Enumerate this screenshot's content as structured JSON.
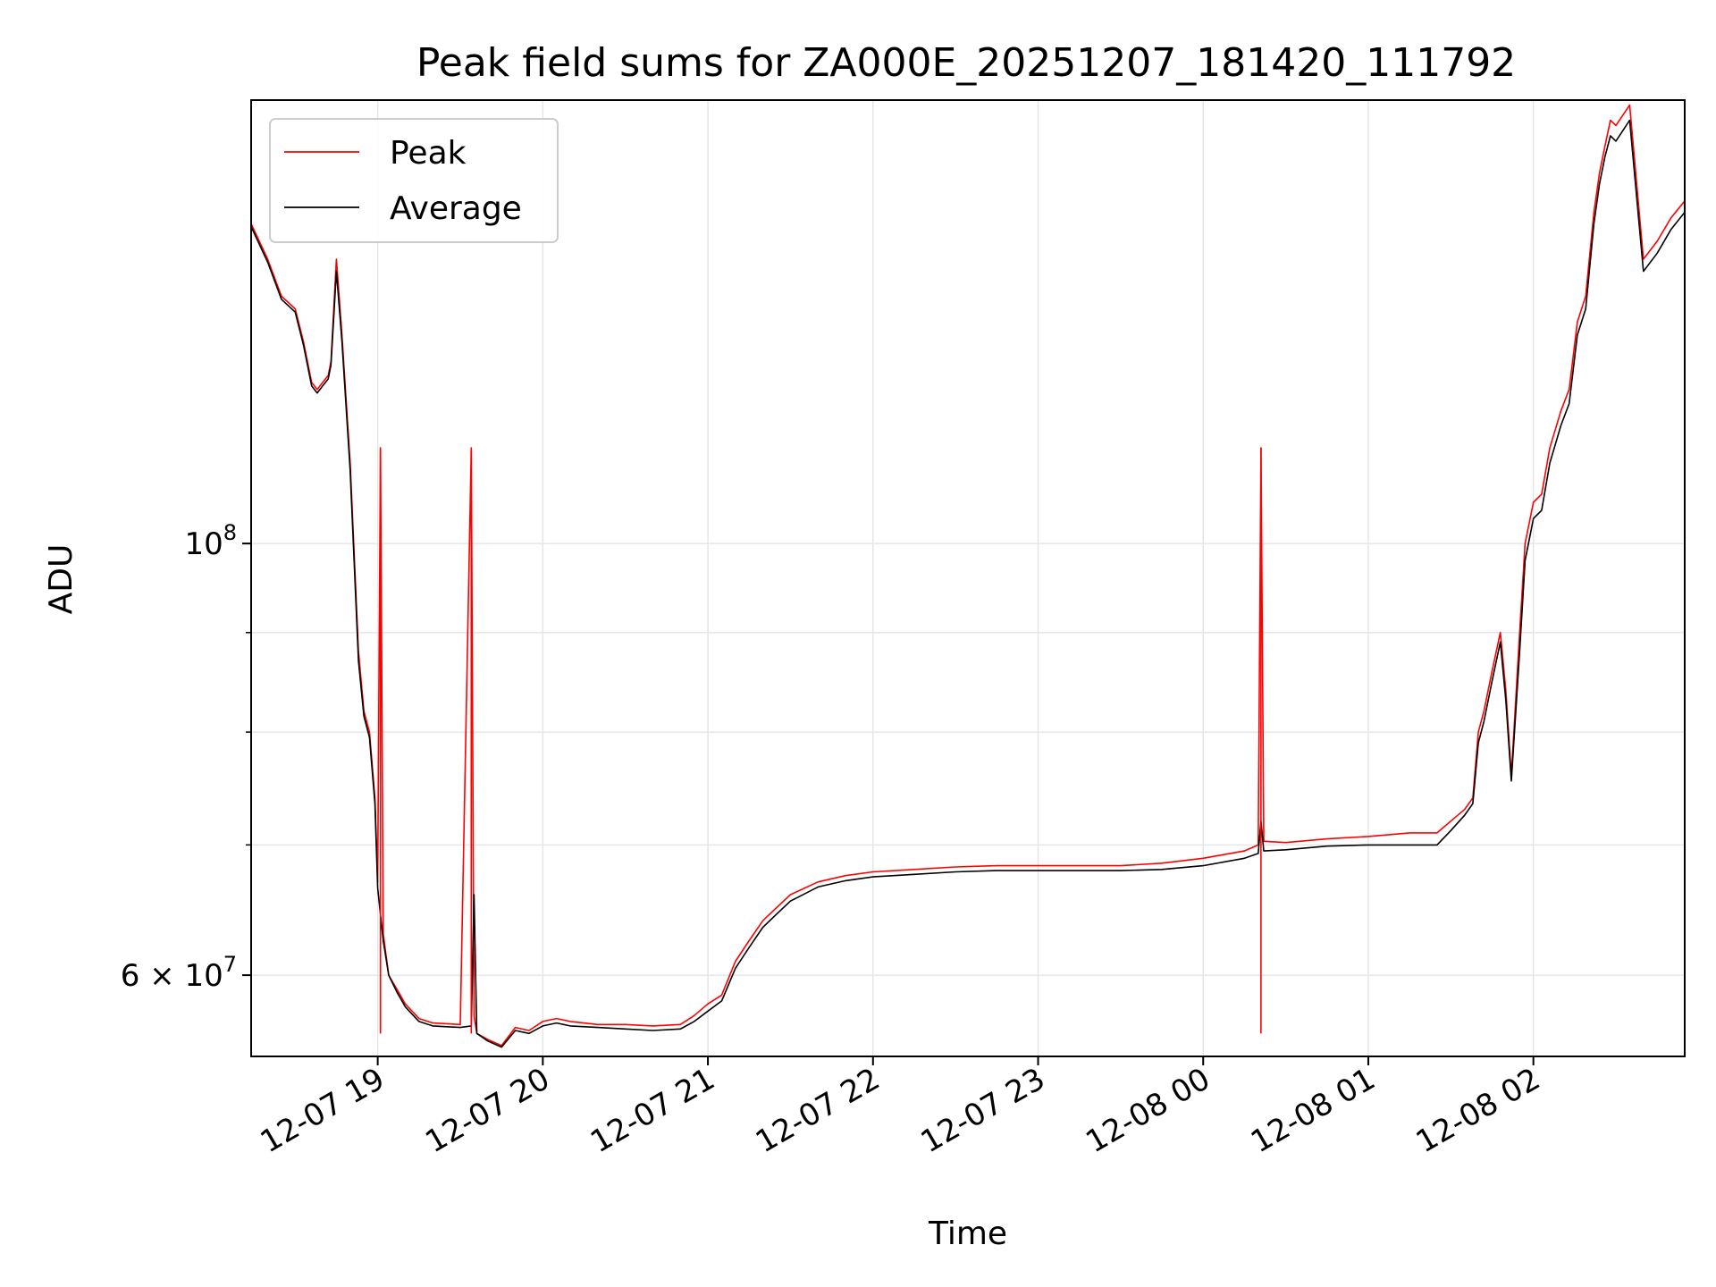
{
  "chart_data": {
    "type": "line",
    "title": "Peak field sums for ZA000E_20251207_181420_111792",
    "xlabel": "Time",
    "ylabel": "ADU",
    "yscale": "log",
    "ylim": [
      54500000,
      169000000
    ],
    "xlim": [
      "2025-12-07 18:14",
      "2025-12-08 02:55"
    ],
    "x_ticks": [
      "12-07 19",
      "12-07 20",
      "12-07 21",
      "12-07 22",
      "12-07 23",
      "12-08 00",
      "12-08 01",
      "12-08 02"
    ],
    "x_tick_times": [
      "2025-12-07 19:00",
      "2025-12-07 20:00",
      "2025-12-07 21:00",
      "2025-12-07 22:00",
      "2025-12-07 23:00",
      "2025-12-08 00:00",
      "2025-12-08 01:00",
      "2025-12-08 02:00"
    ],
    "y_major_ticks": [
      {
        "value": 60000000,
        "label_base": "6 × 10",
        "label_exp": "7"
      },
      {
        "value": 100000000,
        "label_base": "10",
        "label_exp": "8"
      }
    ],
    "y_minor_ticks": [
      70000000,
      80000000,
      90000000
    ],
    "grid": true,
    "legend_position": "upper-left",
    "colors": {
      "peak": "#ff0000",
      "average": "#000000",
      "grid": "#e6e6e6"
    },
    "series": [
      {
        "name": "Peak",
        "color": "#ff0000",
        "x": [
          "2025-12-07 18:14",
          "2025-12-07 18:20",
          "2025-12-07 18:25",
          "2025-12-07 18:30",
          "2025-12-07 18:33",
          "2025-12-07 18:36",
          "2025-12-07 18:38",
          "2025-12-07 18:40",
          "2025-12-07 18:42",
          "2025-12-07 18:43",
          "2025-12-07 18:45",
          "2025-12-07 18:47",
          "2025-12-07 18:50",
          "2025-12-07 18:53",
          "2025-12-07 18:55",
          "2025-12-07 18:57",
          "2025-12-07 18:59",
          "2025-12-07 19:00",
          "2025-12-07 19:01",
          "2025-12-07 19:02",
          "2025-12-07 19:04",
          "2025-12-07 19:07",
          "2025-12-07 19:10",
          "2025-12-07 19:15",
          "2025-12-07 19:20",
          "2025-12-07 19:30",
          "2025-12-07 19:34",
          "2025-12-07 19:35",
          "2025-12-07 19:36",
          "2025-12-07 19:40",
          "2025-12-07 19:45",
          "2025-12-07 19:50",
          "2025-12-07 19:55",
          "2025-12-07 20:00",
          "2025-12-07 20:05",
          "2025-12-07 20:10",
          "2025-12-07 20:20",
          "2025-12-07 20:30",
          "2025-12-07 20:40",
          "2025-12-07 20:50",
          "2025-12-07 20:55",
          "2025-12-07 21:00",
          "2025-12-07 21:05",
          "2025-12-07 21:10",
          "2025-12-07 21:15",
          "2025-12-07 21:20",
          "2025-12-07 21:25",
          "2025-12-07 21:30",
          "2025-12-07 21:40",
          "2025-12-07 21:50",
          "2025-12-07 22:00",
          "2025-12-07 22:15",
          "2025-12-07 22:30",
          "2025-12-07 22:45",
          "2025-12-07 23:00",
          "2025-12-07 23:15",
          "2025-12-07 23:30",
          "2025-12-07 23:45",
          "2025-12-08 00:00",
          "2025-12-08 00:15",
          "2025-12-08 00:20",
          "2025-12-08 00:21",
          "2025-12-08 00:22",
          "2025-12-08 00:30",
          "2025-12-08 00:45",
          "2025-12-08 01:00",
          "2025-12-08 01:15",
          "2025-12-08 01:25",
          "2025-12-08 01:30",
          "2025-12-08 01:35",
          "2025-12-08 01:38",
          "2025-12-08 01:40",
          "2025-12-08 01:42",
          "2025-12-08 01:45",
          "2025-12-08 01:48",
          "2025-12-08 01:50",
          "2025-12-08 01:52",
          "2025-12-08 01:55",
          "2025-12-08 01:57",
          "2025-12-08 02:00",
          "2025-12-08 02:03",
          "2025-12-08 02:06",
          "2025-12-08 02:10",
          "2025-12-08 02:13",
          "2025-12-08 02:16",
          "2025-12-08 02:19",
          "2025-12-08 02:22",
          "2025-12-08 02:24",
          "2025-12-08 02:26",
          "2025-12-08 02:28",
          "2025-12-08 02:30",
          "2025-12-08 02:35",
          "2025-12-08 02:40",
          "2025-12-08 02:45",
          "2025-12-08 02:50",
          "2025-12-08 02:55"
        ],
        "values": [
          146000000,
          140000000,
          134000000,
          132000000,
          127000000,
          121000000,
          120000000,
          121000000,
          122000000,
          124000000,
          140000000,
          128000000,
          110000000,
          88000000,
          82000000,
          80000000,
          74000000,
          67000000,
          112000000,
          63000000,
          60000000,
          59000000,
          58000000,
          57000000,
          56700000,
          56600000,
          112000000,
          57200000,
          56000000,
          55600000,
          55200000,
          56400000,
          56200000,
          56800000,
          57000000,
          56800000,
          56600000,
          56600000,
          56500000,
          56600000,
          57200000,
          58000000,
          58600000,
          61000000,
          62500000,
          64000000,
          65000000,
          66000000,
          67000000,
          67500000,
          67800000,
          68000000,
          68200000,
          68300000,
          68300000,
          68300000,
          68300000,
          68500000,
          68900000,
          69500000,
          70000000,
          112000000,
          70300000,
          70200000,
          70500000,
          70700000,
          71000000,
          71000000,
          72000000,
          73000000,
          74000000,
          80000000,
          82000000,
          86000000,
          90000000,
          84000000,
          76000000,
          90000000,
          100000000,
          105000000,
          106000000,
          112000000,
          117000000,
          120000000,
          130000000,
          134000000,
          148000000,
          155000000,
          160000000,
          165000000,
          164000000,
          168000000,
          140000000,
          143000000,
          147000000,
          150000000
        ]
      },
      {
        "name": "Average",
        "color": "#000000",
        "x": [
          "2025-12-07 18:14",
          "2025-12-07 18:20",
          "2025-12-07 18:25",
          "2025-12-07 18:30",
          "2025-12-07 18:33",
          "2025-12-07 18:36",
          "2025-12-07 18:38",
          "2025-12-07 18:40",
          "2025-12-07 18:42",
          "2025-12-07 18:43",
          "2025-12-07 18:45",
          "2025-12-07 18:47",
          "2025-12-07 18:50",
          "2025-12-07 18:53",
          "2025-12-07 18:55",
          "2025-12-07 18:57",
          "2025-12-07 18:59",
          "2025-12-07 19:00",
          "2025-12-07 19:02",
          "2025-12-07 19:04",
          "2025-12-07 19:07",
          "2025-12-07 19:10",
          "2025-12-07 19:15",
          "2025-12-07 19:20",
          "2025-12-07 19:30",
          "2025-12-07 19:34",
          "2025-12-07 19:35",
          "2025-12-07 19:36",
          "2025-12-07 19:40",
          "2025-12-07 19:45",
          "2025-12-07 19:50",
          "2025-12-07 19:55",
          "2025-12-07 20:00",
          "2025-12-07 20:05",
          "2025-12-07 20:10",
          "2025-12-07 20:20",
          "2025-12-07 20:30",
          "2025-12-07 20:40",
          "2025-12-07 20:50",
          "2025-12-07 20:55",
          "2025-12-07 21:00",
          "2025-12-07 21:05",
          "2025-12-07 21:10",
          "2025-12-07 21:15",
          "2025-12-07 21:20",
          "2025-12-07 21:25",
          "2025-12-07 21:30",
          "2025-12-07 21:40",
          "2025-12-07 21:50",
          "2025-12-07 22:00",
          "2025-12-07 22:15",
          "2025-12-07 22:30",
          "2025-12-07 22:45",
          "2025-12-07 23:00",
          "2025-12-07 23:15",
          "2025-12-07 23:30",
          "2025-12-07 23:45",
          "2025-12-08 00:00",
          "2025-12-08 00:15",
          "2025-12-08 00:20",
          "2025-12-08 00:21",
          "2025-12-08 00:22",
          "2025-12-08 00:30",
          "2025-12-08 00:45",
          "2025-12-08 01:00",
          "2025-12-08 01:15",
          "2025-12-08 01:25",
          "2025-12-08 01:30",
          "2025-12-08 01:35",
          "2025-12-08 01:38",
          "2025-12-08 01:40",
          "2025-12-08 01:42",
          "2025-12-08 01:45",
          "2025-12-08 01:48",
          "2025-12-08 01:50",
          "2025-12-08 01:52",
          "2025-12-08 01:55",
          "2025-12-08 01:57",
          "2025-12-08 02:00",
          "2025-12-08 02:03",
          "2025-12-08 02:06",
          "2025-12-08 02:10",
          "2025-12-08 02:13",
          "2025-12-08 02:16",
          "2025-12-08 02:19",
          "2025-12-08 02:22",
          "2025-12-08 02:24",
          "2025-12-08 02:26",
          "2025-12-08 02:28",
          "2025-12-08 02:30",
          "2025-12-08 02:35",
          "2025-12-08 02:40",
          "2025-12-08 02:45",
          "2025-12-08 02:50",
          "2025-12-08 02:55"
        ],
        "values": [
          145500000,
          139500000,
          133500000,
          131500000,
          126500000,
          120500000,
          119500000,
          120500000,
          121500000,
          123500000,
          138000000,
          127000000,
          109000000,
          87000000,
          81500000,
          79500000,
          73500000,
          66500000,
          62500000,
          60000000,
          58800000,
          57800000,
          56800000,
          56500000,
          56400000,
          56500000,
          66000000,
          56000000,
          55500000,
          55100000,
          56200000,
          56000000,
          56500000,
          56700000,
          56500000,
          56400000,
          56300000,
          56200000,
          56300000,
          56800000,
          57500000,
          58200000,
          60500000,
          62000000,
          63500000,
          64500000,
          65500000,
          66600000,
          67100000,
          67400000,
          67600000,
          67800000,
          67900000,
          67900000,
          67900000,
          67900000,
          68000000,
          68300000,
          68900000,
          69300000,
          72000000,
          69500000,
          69600000,
          69900000,
          70000000,
          70000000,
          70000000,
          71200000,
          72500000,
          73500000,
          79000000,
          81000000,
          85000000,
          89000000,
          83000000,
          75500000,
          88000000,
          98000000,
          103000000,
          104000000,
          110000000,
          115000000,
          118000000,
          128000000,
          132000000,
          146000000,
          153000000,
          158000000,
          162000000,
          161000000,
          165000000,
          138000000,
          141000000,
          145000000,
          148000000
        ]
      }
    ],
    "spikes": [
      {
        "series": "Peak",
        "x": "2025-12-07 19:01",
        "value": 112000000
      },
      {
        "series": "Peak",
        "x": "2025-12-07 19:34",
        "value": 112000000
      },
      {
        "series": "Peak",
        "x": "2025-12-08 00:21",
        "value": 112000000
      }
    ]
  }
}
